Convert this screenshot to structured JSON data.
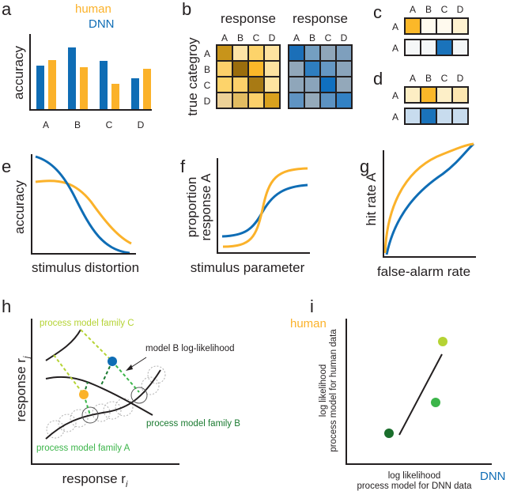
{
  "colors": {
    "human": "#fbb22a",
    "dnn": "#0f6db5",
    "family_a": "#3cb54a",
    "family_b": "#1a7a30",
    "family_c": "#b5d334"
  },
  "panel_a": {
    "label": "a",
    "legend_human": "human",
    "legend_dnn": "DNN",
    "ylabel": "accuracy",
    "chart_data": {
      "type": "bar",
      "categories": [
        "A",
        "B",
        "C",
        "D"
      ],
      "series": [
        {
          "name": "DNN",
          "values": [
            56,
            79,
            62,
            40
          ]
        },
        {
          "name": "human",
          "values": [
            63,
            54,
            33,
            52
          ]
        }
      ]
    }
  },
  "panel_b": {
    "label": "b",
    "ylabel": "true categroy",
    "title_left": "response",
    "title_right": "response",
    "cols": [
      "A",
      "B",
      "C",
      "D"
    ],
    "rows": [
      "A",
      "B",
      "C",
      "D"
    ],
    "human_matrix": [
      [
        "#c8941a",
        "#fde4a6",
        "#fdd36a",
        "#fee3a0"
      ],
      [
        "#fcd06a",
        "#9a6d0d",
        "#fbb829",
        "#fde3a0"
      ],
      [
        "#fdd36a",
        "#fcd06a",
        "#a87a14",
        "#fee3a0"
      ],
      [
        "#edd197",
        "#e2bc62",
        "#fcd06a",
        "#d9a11e"
      ]
    ],
    "dnn_matrix": [
      [
        "#1b6fb8",
        "#749fc1",
        "#8fa6ba",
        "#7e9fbd"
      ],
      [
        "#91a7ba",
        "#2e7ec0",
        "#6597c3",
        "#8aa4bb"
      ],
      [
        "#8fa6ba",
        "#8aa4bb",
        "#1070c0",
        "#93a8ba"
      ],
      [
        "#5f93c2",
        "#95aabb",
        "#5c92c2",
        "#3281c4"
      ]
    ]
  },
  "panel_c": {
    "label": "c",
    "cols": [
      "A",
      "B",
      "C",
      "D"
    ],
    "row_labels": [
      "A",
      "A"
    ],
    "strips": [
      [
        "#fbb829",
        "#fffbef",
        "#fffaee",
        "#fff2d0"
      ],
      [
        "#f5f7f8",
        "#f5f7f8",
        "#1a73bb",
        "#f4f6f7"
      ]
    ]
  },
  "panel_d": {
    "label": "d",
    "cols": [
      "A",
      "B",
      "C",
      "D"
    ],
    "row_labels": [
      "A",
      "A"
    ],
    "strips": [
      [
        "#fdeec4",
        "#fbb829",
        "#fdefc8",
        "#fde7b0"
      ],
      [
        "#c8dcee",
        "#1a73bb",
        "#c8dcee",
        "#c8dcee"
      ]
    ]
  },
  "panel_e": {
    "label": "e",
    "ylabel": "accuracy",
    "xlabel": "stimulus distortion"
  },
  "panel_f": {
    "label": "f",
    "ylabel_1": "proportion",
    "ylabel_2": "response A",
    "xlabel": "stimulus parameter"
  },
  "panel_g": {
    "label": "g",
    "ylabel": "hit rate A",
    "xlabel": "false-alarm rate"
  },
  "panel_h": {
    "label": "h",
    "ylabel": "response r",
    "ylabel_sub": "j",
    "xlabel": "response r",
    "xlabel_sub": "i",
    "family_c": "process model family C",
    "family_b": "process model family B",
    "family_a": "process model family A",
    "annotation": "model B log-likelihood"
  },
  "panel_i": {
    "label": "i",
    "human": "human",
    "dnn": "DNN",
    "ylabel_1": "log likelihood",
    "ylabel_2": "process model for human data",
    "xlabel_1": "log likelihood",
    "xlabel_2": "process model for DNN data"
  }
}
